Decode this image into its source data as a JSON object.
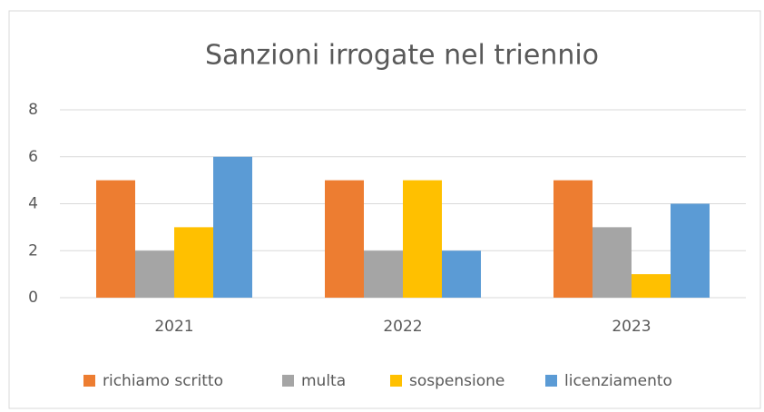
{
  "chart_data": {
    "type": "bar",
    "title": "Sanzioni irrogate nel triennio",
    "categories": [
      "2021",
      "2022",
      "2023"
    ],
    "series": [
      {
        "name": "richiamo scritto",
        "color": "#ED7D31",
        "values": [
          5,
          5,
          5
        ]
      },
      {
        "name": "multa",
        "color": "#A5A5A5",
        "values": [
          2,
          2,
          3
        ]
      },
      {
        "name": "sospensione",
        "color": "#FFC000",
        "values": [
          3,
          5,
          1
        ]
      },
      {
        "name": "licenziamento",
        "color": "#5B9BD5",
        "values": [
          6,
          2,
          4
        ]
      }
    ],
    "ylim": [
      0,
      8
    ],
    "yticks": [
      0,
      2,
      4,
      6,
      8
    ],
    "grid": true,
    "legend": "bottom"
  }
}
